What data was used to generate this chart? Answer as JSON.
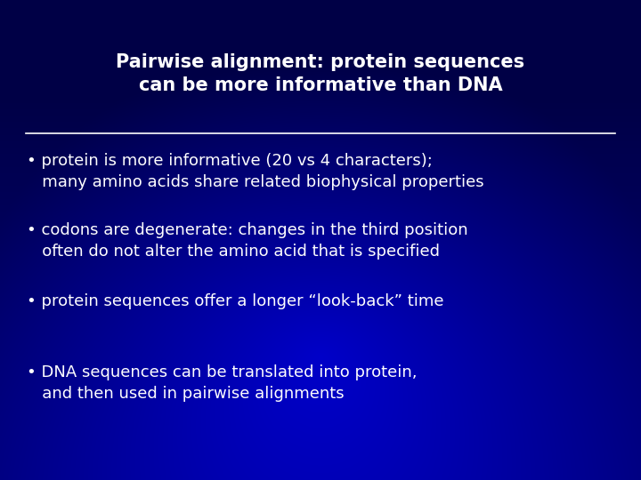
{
  "title_line1": "Pairwise alignment: protein sequences",
  "title_line2": "can be more informative than DNA",
  "bullets": [
    "protein is more informative (20 vs 4 characters);\n   many amino acids share related biophysical properties",
    "codons are degenerate: changes in the third position\n   often do not alter the amino acid that is specified",
    "protein sequences offer a longer “look-back” time",
    "DNA sequences can be translated into protein,\n   and then used in pairwise alignments"
  ],
  "bg_top_color": "#001166",
  "bg_bottom_color": "#0033dd",
  "text_color": "#ffffff",
  "title_color": "#ffffff",
  "line_color": "#ffffff",
  "title_fontsize": 15,
  "bullet_fontsize": 13,
  "figwidth": 7.2,
  "figheight": 5.4,
  "dpi": 100
}
